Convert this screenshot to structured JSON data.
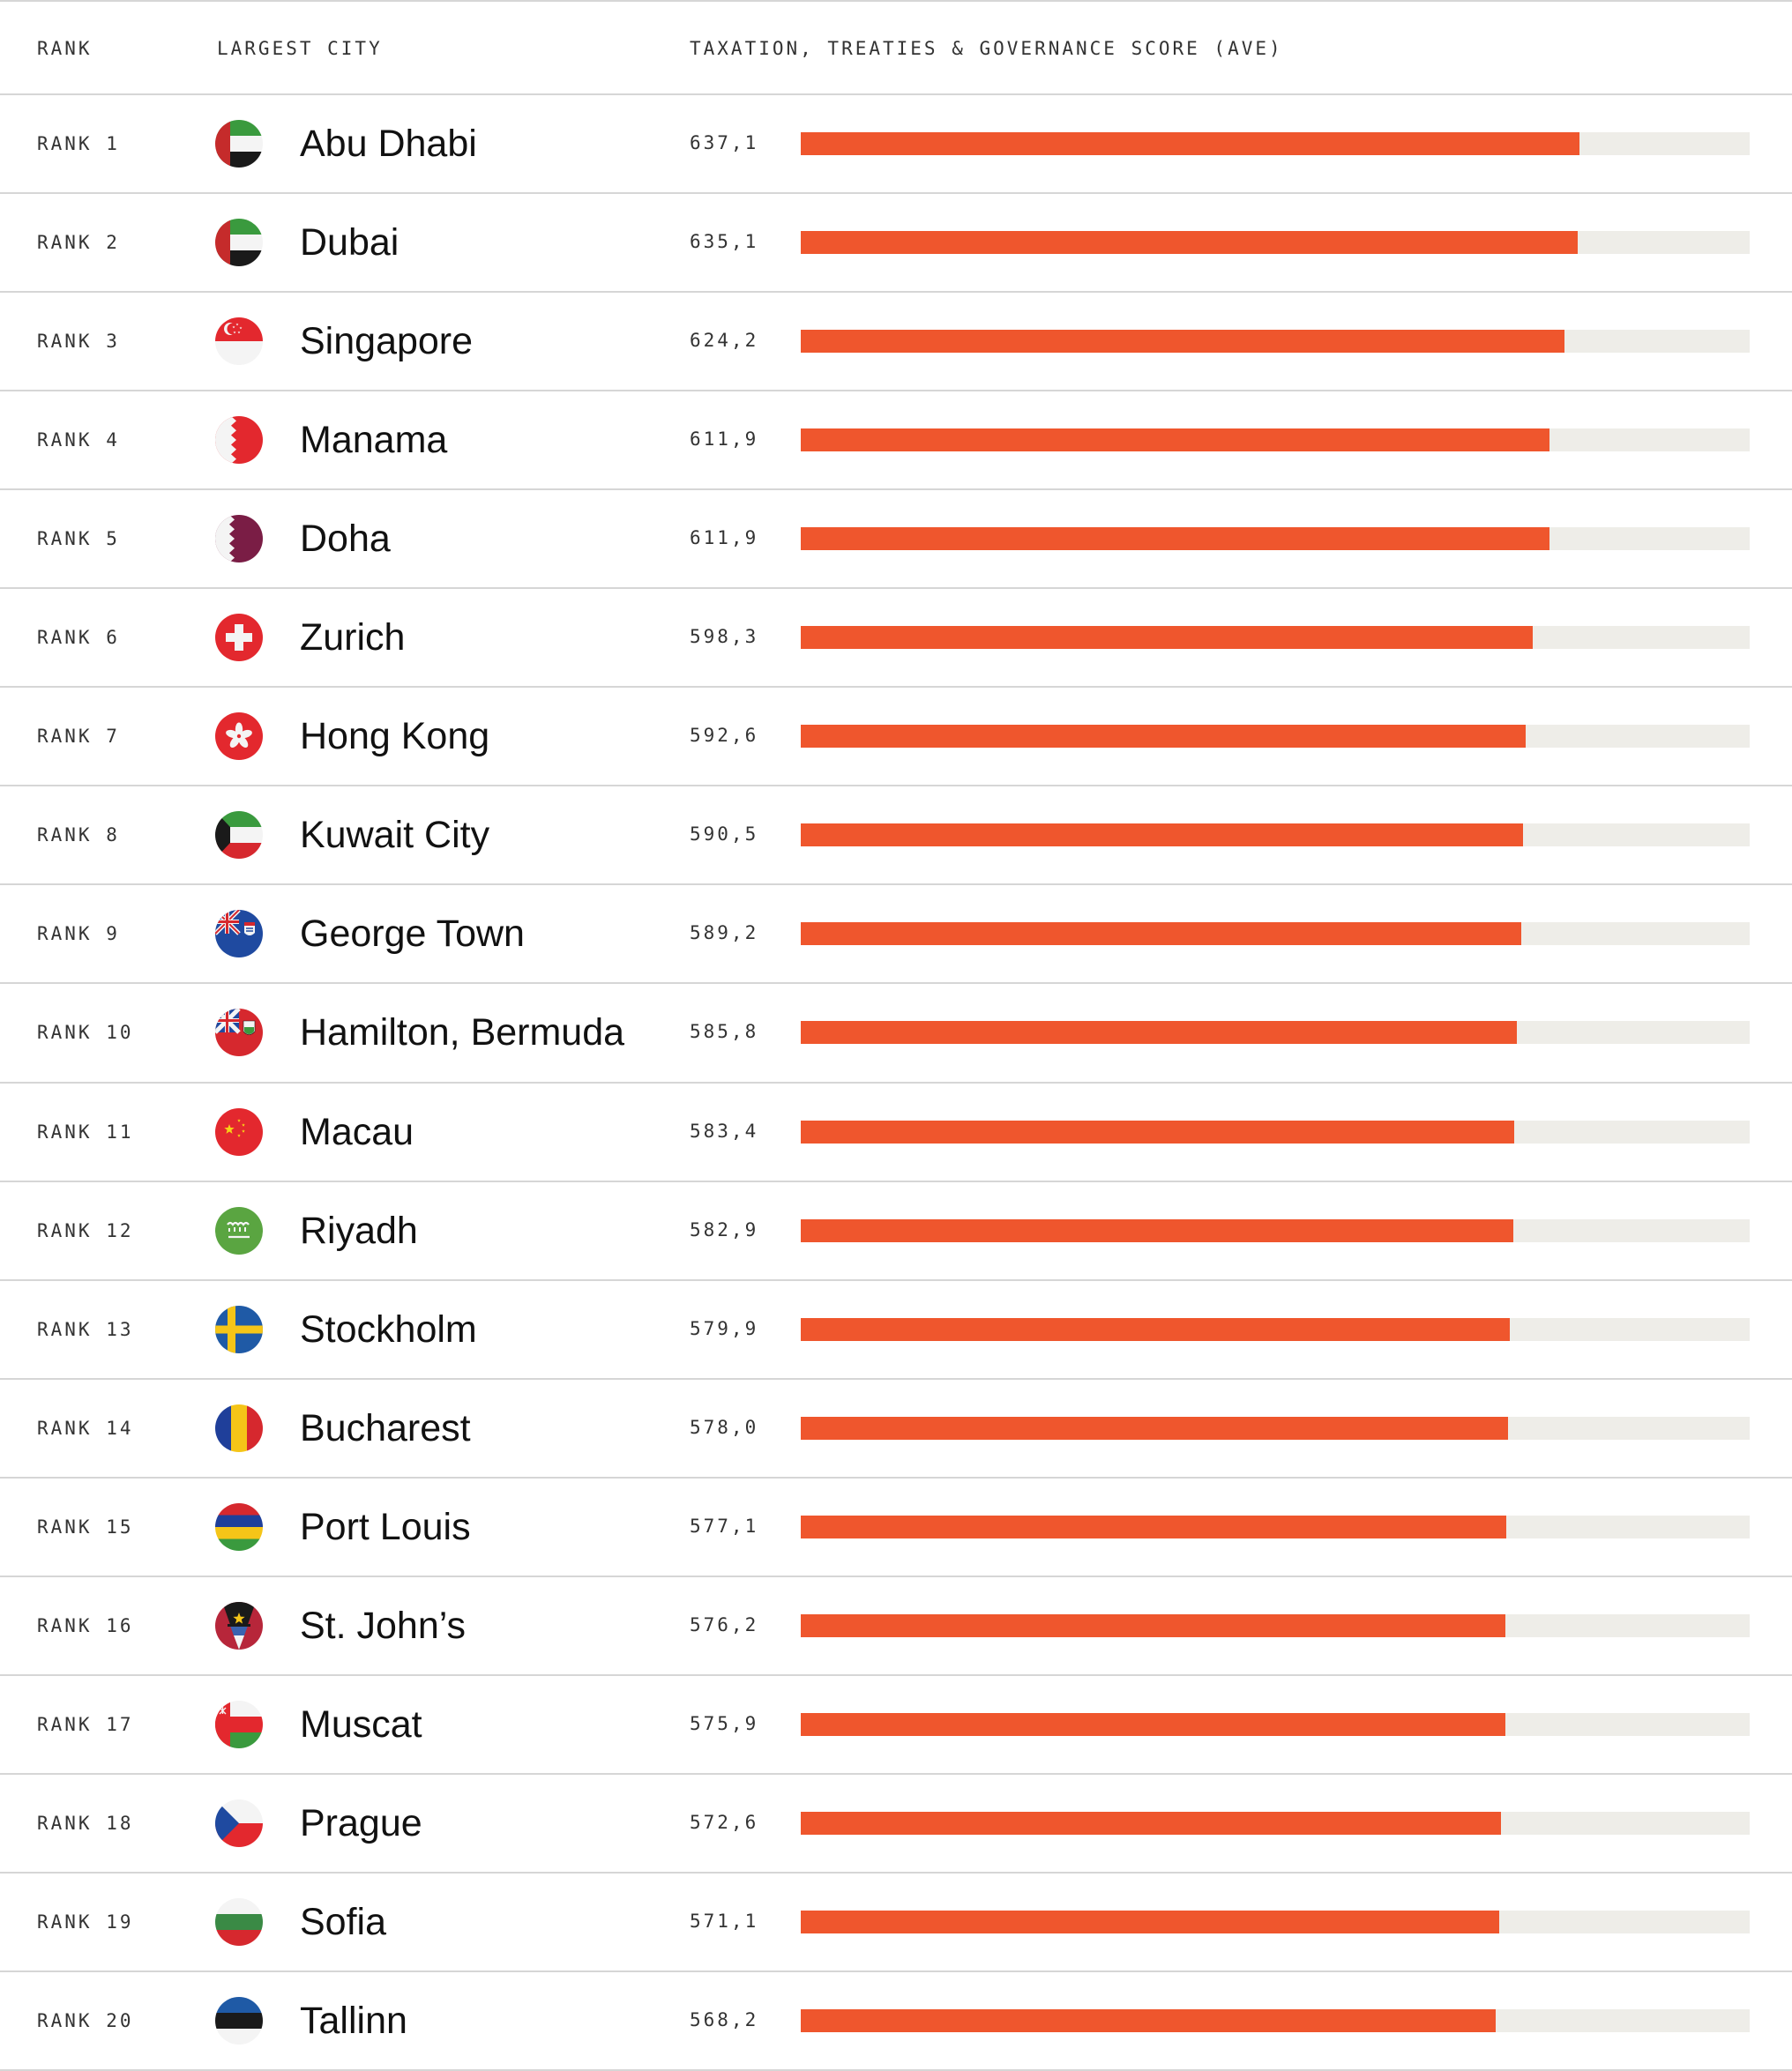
{
  "headers": {
    "rank": "RANK",
    "city": "LARGEST CITY",
    "score": "TAXATION, TREATIES & GOVERNANCE SCORE (AVE)"
  },
  "rows": [
    {
      "rank": "RANK 1",
      "city": "Abu Dhabi",
      "score": "637,1",
      "flag": "uae-flag-icon"
    },
    {
      "rank": "RANK 2",
      "city": "Dubai",
      "score": "635,1",
      "flag": "uae-flag-icon"
    },
    {
      "rank": "RANK 3",
      "city": "Singapore",
      "score": "624,2",
      "flag": "singapore-flag-icon"
    },
    {
      "rank": "RANK 4",
      "city": "Manama",
      "score": "611,9",
      "flag": "bahrain-flag-icon"
    },
    {
      "rank": "RANK 5",
      "city": "Doha",
      "score": "611,9",
      "flag": "qatar-flag-icon"
    },
    {
      "rank": "RANK 6",
      "city": "Zurich",
      "score": "598,3",
      "flag": "switzerland-flag-icon"
    },
    {
      "rank": "RANK 7",
      "city": "Hong Kong",
      "score": "592,6",
      "flag": "hong-kong-flag-icon"
    },
    {
      "rank": "RANK 8",
      "city": "Kuwait City",
      "score": "590,5",
      "flag": "kuwait-flag-icon"
    },
    {
      "rank": "RANK 9",
      "city": "George Town",
      "score": "589,2",
      "flag": "cayman-islands-flag-icon"
    },
    {
      "rank": "RANK 10",
      "city": "Hamilton, Bermuda",
      "score": "585,8",
      "flag": "bermuda-flag-icon"
    },
    {
      "rank": "RANK 11",
      "city": "Macau",
      "score": "583,4",
      "flag": "china-flag-icon"
    },
    {
      "rank": "RANK 12",
      "city": "Riyadh",
      "score": "582,9",
      "flag": "saudi-arabia-flag-icon"
    },
    {
      "rank": "RANK 13",
      "city": "Stockholm",
      "score": "579,9",
      "flag": "sweden-flag-icon"
    },
    {
      "rank": "RANK 14",
      "city": "Bucharest",
      "score": "578,0",
      "flag": "romania-flag-icon"
    },
    {
      "rank": "RANK 15",
      "city": "Port Louis",
      "score": "577,1",
      "flag": "mauritius-flag-icon"
    },
    {
      "rank": "RANK 16",
      "city": "St. John’s",
      "score": "576,2",
      "flag": "antigua-barbuda-flag-icon"
    },
    {
      "rank": "RANK 17",
      "city": "Muscat",
      "score": "575,9",
      "flag": "oman-flag-icon"
    },
    {
      "rank": "RANK 18",
      "city": "Prague",
      "score": "572,6",
      "flag": "czech-flag-icon"
    },
    {
      "rank": "RANK 19",
      "city": "Sofia",
      "score": "571,1",
      "flag": "bulgaria-flag-icon"
    },
    {
      "rank": "RANK 20",
      "city": "Tallinn",
      "score": "568,2",
      "flag": "estonia-flag-icon"
    }
  ],
  "colors": {
    "bar": "#ef562d",
    "track": "#eeede8",
    "divider": "#d6d6d6"
  },
  "chart_data": {
    "type": "bar",
    "orientation": "horizontal",
    "title": "",
    "xlabel": "",
    "ylabel": "",
    "categories": [
      "Abu Dhabi",
      "Dubai",
      "Singapore",
      "Manama",
      "Doha",
      "Zurich",
      "Hong Kong",
      "Kuwait City",
      "George Town",
      "Hamilton, Bermuda",
      "Macau",
      "Riyadh",
      "Stockholm",
      "Bucharest",
      "Port Louis",
      "St. John’s",
      "Muscat",
      "Prague",
      "Sofia",
      "Tallinn"
    ],
    "values": [
      637.1,
      635.1,
      624.2,
      611.9,
      611.9,
      598.3,
      592.6,
      590.5,
      589.2,
      585.8,
      583.4,
      582.9,
      579.9,
      578.0,
      577.1,
      576.2,
      575.9,
      572.6,
      571.1,
      568.2
    ],
    "xlim": [
      0,
      776
    ],
    "grid": false,
    "legend": "none"
  }
}
